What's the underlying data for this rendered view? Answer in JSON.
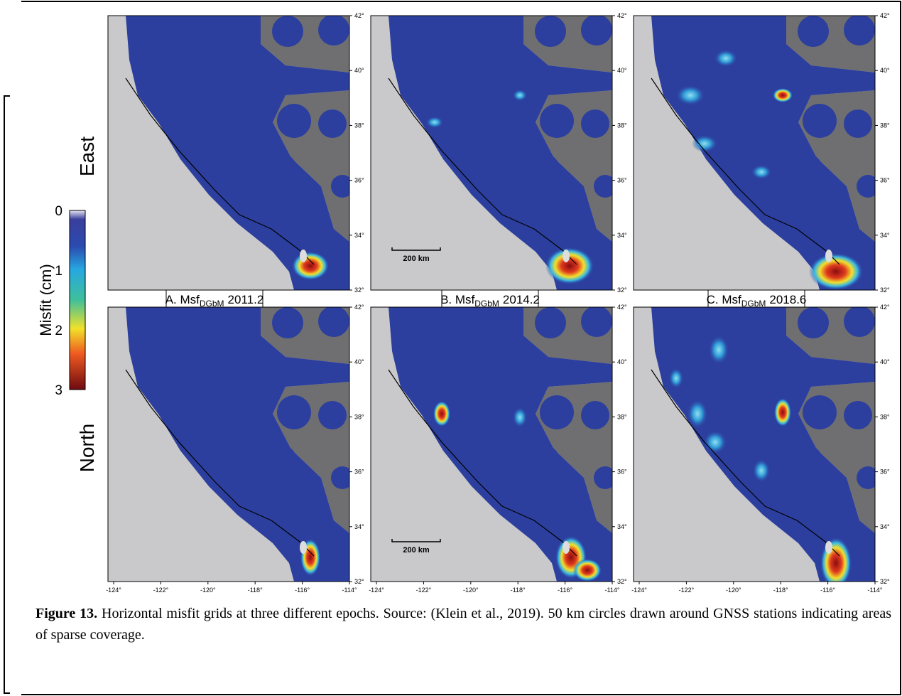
{
  "figure": {
    "row_labels": [
      "East",
      "North"
    ],
    "colorbar": {
      "title": "Misfit (cm)",
      "ticks": [
        "0",
        "1",
        "2",
        "3"
      ]
    },
    "panels": [
      {
        "prefix": "A. Msf",
        "sub": "DGbM",
        "epoch": "2011.2"
      },
      {
        "prefix": "B. Msf",
        "sub": "DGbM",
        "epoch": "2014.2"
      },
      {
        "prefix": "C. Msf",
        "sub": "DGbM",
        "epoch": "2018.6"
      }
    ],
    "lat_ticks": [
      "42°",
      "40°",
      "38°",
      "36°",
      "34°",
      "32°"
    ],
    "lon_ticks": [
      "-124°",
      "-122°",
      "-120°",
      "-118°",
      "-116°",
      "-114°"
    ],
    "scale_bar": "200 km"
  },
  "caption": {
    "label": "Figure 13.",
    "text": " Horizontal misfit grids at three different epochs. Source: (Klein et al., 2019). 50 km circles drawn around GNSS stations indicating areas of sparse coverage."
  }
}
